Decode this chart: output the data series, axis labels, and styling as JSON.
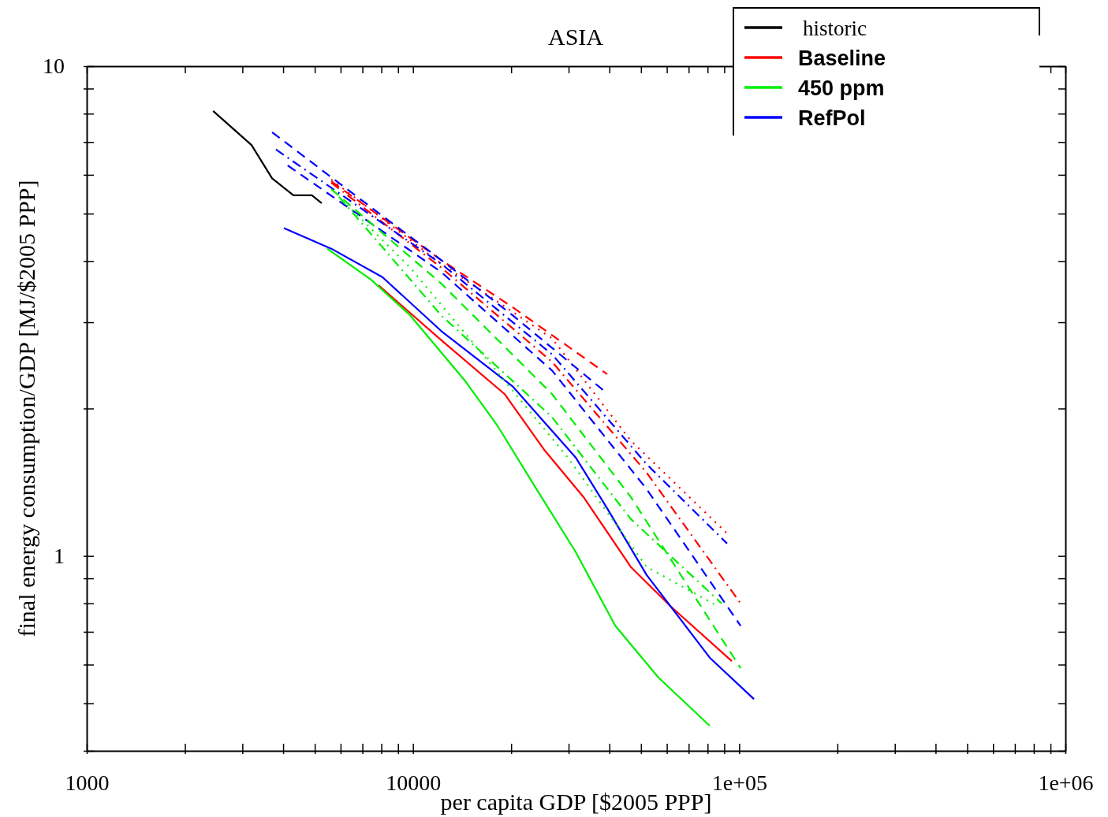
{
  "chart_data": {
    "type": "line",
    "title": "ASIA",
    "xlabel": "per capita GDP [$2005 PPP]",
    "ylabel": "final energy consumption/GDP [MJ/$2005 PPP]",
    "log": "xy",
    "grid": false,
    "legend": "top right",
    "marker": "none",
    "line_style": "solid",
    "xlim": [
      1000,
      1000000
    ],
    "ylim": [
      0.4,
      10
    ],
    "xticks": [
      {
        "value": 1000,
        "label": "1000"
      },
      {
        "value": 2000,
        "label": null
      },
      {
        "value": 3000,
        "label": null
      },
      {
        "value": 4000,
        "label": null
      },
      {
        "value": 5000,
        "label": null
      },
      {
        "value": 6000,
        "label": null
      },
      {
        "value": 7000,
        "label": null
      },
      {
        "value": 8000,
        "label": null
      },
      {
        "value": 9000,
        "label": null
      },
      {
        "value": 10000,
        "label": "10000"
      },
      {
        "value": 20000,
        "label": null
      },
      {
        "value": 30000,
        "label": null
      },
      {
        "value": 40000,
        "label": null
      },
      {
        "value": 50000,
        "label": null
      },
      {
        "value": 60000,
        "label": null
      },
      {
        "value": 70000,
        "label": null
      },
      {
        "value": 80000,
        "label": null
      },
      {
        "value": 90000,
        "label": null
      },
      {
        "value": 100000,
        "label": "1e+05"
      },
      {
        "value": 200000,
        "label": null
      },
      {
        "value": 300000,
        "label": null
      },
      {
        "value": 400000,
        "label": null
      },
      {
        "value": 500000,
        "label": null
      },
      {
        "value": 600000,
        "label": null
      },
      {
        "value": 700000,
        "label": null
      },
      {
        "value": 800000,
        "label": null
      },
      {
        "value": 900000,
        "label": null
      },
      {
        "value": 1000000,
        "label": "1e+06"
      }
    ],
    "yticks": [
      {
        "value": 0.4,
        "label": null
      },
      {
        "value": 0.5,
        "label": null
      },
      {
        "value": 0.6,
        "label": null
      },
      {
        "value": 0.7,
        "label": null
      },
      {
        "value": 0.8,
        "label": null
      },
      {
        "value": 0.9,
        "label": null
      },
      1,
      {
        "value": 2,
        "label": null
      },
      {
        "value": 3,
        "label": null
      },
      {
        "value": 4,
        "label": null
      },
      {
        "value": 5,
        "label": null
      },
      {
        "value": 6,
        "label": null
      },
      {
        "value": 7,
        "label": null
      },
      {
        "value": 8,
        "label": null
      },
      {
        "value": 9,
        "label": null
      },
      10
    ],
    "series": [
      {
        "name": "historic",
        "color": "#000000",
        "x": [
          2440,
          3200,
          3700,
          4300,
          4900,
          5250
        ],
        "values": [
          8.1,
          6.9,
          5.9,
          5.45,
          5.45,
          5.25
        ]
      },
      {
        "name": "Baseline",
        "color": "#ff0000",
        "x": [
          7840,
          12200,
          19100,
          25200,
          33300,
          46500,
          61500,
          94900
        ],
        "values": [
          3.57,
          2.76,
          2.14,
          1.65,
          1.32,
          0.95,
          0.79,
          0.61
        ]
      },
      {
        "name": "450 ppm",
        "color": "#00ee00",
        "x": [
          5460,
          7420,
          9800,
          14500,
          18100,
          23900,
          31500,
          41700,
          56500,
          81200
        ],
        "values": [
          4.24,
          3.67,
          3.1,
          2.27,
          1.85,
          1.37,
          1.02,
          0.72,
          0.565,
          0.45
        ]
      },
      {
        "name": "RefPol",
        "color": "#0000ff",
        "x": [
          4020,
          5620,
          8060,
          12200,
          20200,
          25200,
          31500,
          39400,
          52000,
          81200,
          111000
        ],
        "values": [
          4.67,
          4.24,
          3.71,
          2.88,
          2.22,
          1.88,
          1.59,
          1.25,
          0.915,
          0.62,
          0.51
        ]
      },
      {
        "color": "#ff0000",
        "line_style": "dashed",
        "x": [
          5620,
          12200,
          20200,
          39400
        ],
        "values": [
          5.82,
          4.02,
          3.22,
          2.35
        ]
      },
      {
        "color": "#ff0000",
        "line_style": "dotted",
        "x": [
          5620,
          12200,
          26700,
          46500,
          93300
        ],
        "values": [
          5.87,
          3.95,
          2.78,
          1.72,
          1.1
        ]
      },
      {
        "color": "#ff0000",
        "line_style": "dashdot",
        "x": [
          5620,
          12200,
          26700,
          52000,
          101000
        ],
        "values": [
          5.78,
          3.88,
          2.49,
          1.48,
          0.8
        ]
      },
      {
        "color": "#0000ff",
        "line_style": "dashed",
        "x": [
          3700,
          5620,
          12200,
          20200,
          38300
        ],
        "values": [
          7.33,
          5.93,
          4.02,
          3.1,
          2.18
        ]
      },
      {
        "color": "#0000ff",
        "line_style": "dashdot",
        "x": [
          3800,
          12200,
          26700,
          52000,
          91800
        ],
        "values": [
          6.76,
          3.95,
          2.58,
          1.54,
          1.06
        ]
      },
      {
        "color": "#0000ff",
        "line_style": "dashed",
        "x": [
          4130,
          12200,
          26700,
          52000,
          101000
        ],
        "values": [
          6.27,
          3.8,
          2.39,
          1.37,
          0.72
        ]
      },
      {
        "color": "#00ee00",
        "line_style": "dashed",
        "x": [
          5620,
          12200,
          26700,
          46500,
          101000
        ],
        "values": [
          5.61,
          3.6,
          2.14,
          1.32,
          0.59
        ]
      },
      {
        "color": "#00ee00",
        "line_style": "dashdot",
        "x": [
          5930,
          12200,
          26700,
          46500,
          88300
        ],
        "values": [
          5.41,
          3.1,
          1.92,
          1.19,
          0.8
        ]
      },
      {
        "color": "#00ee00",
        "line_style": "dotted",
        "x": [
          6280,
          9800,
          17100,
          29800,
          52000,
          85900
        ],
        "values": [
          5.21,
          3.88,
          2.49,
          1.59,
          0.95,
          0.79
        ]
      }
    ]
  }
}
